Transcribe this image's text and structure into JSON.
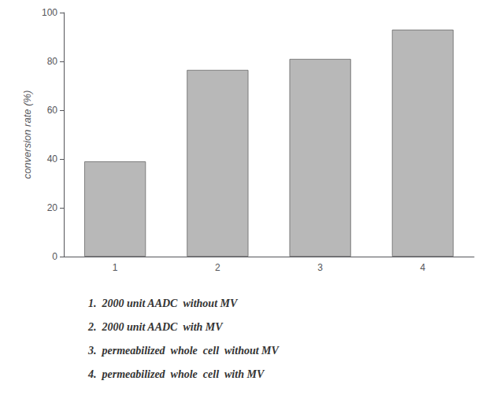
{
  "chart_data": {
    "type": "bar",
    "categories": [
      "1",
      "2",
      "3",
      "4"
    ],
    "values": [
      39,
      76.5,
      81,
      93
    ],
    "color": "#b8b8b8",
    "ylabel": "conversion rate (%)",
    "ylim": [
      0,
      100
    ],
    "yticks": [
      0,
      20,
      40,
      60,
      80,
      100
    ],
    "grid": false,
    "annotations": [
      "1.  2000 unit AADC  without MV",
      "2.  2000 unit AADC  with MV",
      "3.  permeabilized  whole  cell  without MV",
      "4.  permeabilized  whole  cell  with MV"
    ]
  }
}
